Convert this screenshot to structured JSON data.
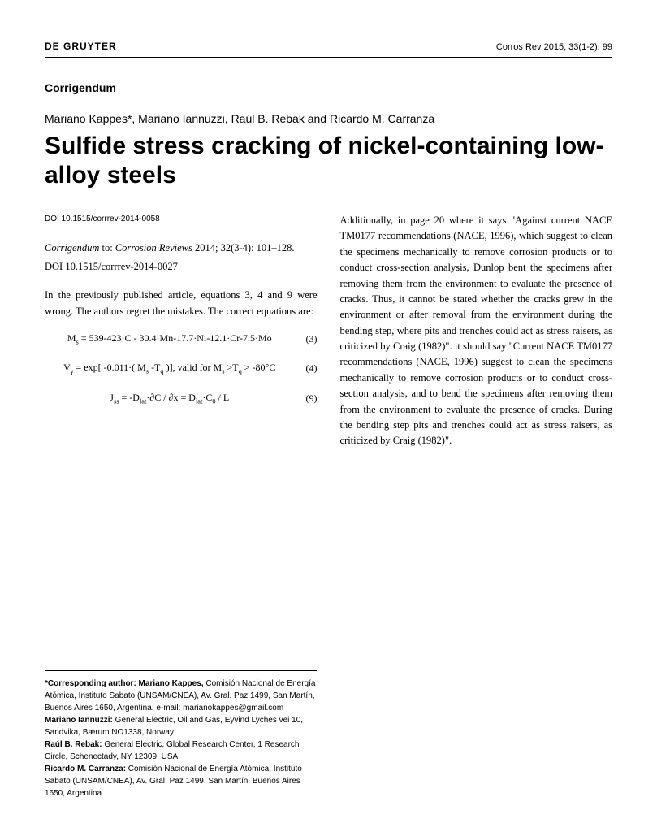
{
  "header": {
    "publisher": "DE GRUYTER",
    "citation": "Corros Rev 2015; 33(1-2): 99"
  },
  "section_label": "Corrigendum",
  "authors": "Mariano Kappes*, Mariano Iannuzzi, Raúl B. Rebak and Ricardo M. Carranza",
  "title": "Sulfide stress cracking of nickel-containing low-alloy steels",
  "doi_small": "DOI 10.1515/corrrev-2014-0058",
  "corrigendum_ref_prefix": "Corrigendum",
  "corrigendum_ref_middle": " to: ",
  "corrigendum_ref_journal": "Corrosion Reviews",
  "corrigendum_ref_suffix": " 2014; 32(3-4): 101–128.",
  "doi_ref": "DOI 10.1515/corrrev-2014-0027",
  "intro": "In the previously published article, equations 3, 4 and 9 were wrong. The authors regret the mistakes. The correct equations are:",
  "equations": [
    {
      "content_html": "M<sub>s</sub> = 539-423·C - 30.4·Mn-17.7·Ni-12.1·Cr-7.5·Mo",
      "num": "(3)"
    },
    {
      "content_html": "V<sub>γ</sub> = exp[ -0.011·( M<sub>s</sub> -T<sub>q</sub> )], valid for M<sub>s</sub> >T<sub>q</sub> > -80°C",
      "num": "(4)"
    },
    {
      "content_html": "J<sub>ss</sub> = -D<sub>lat</sub>·∂C / ∂x = D<sub>lat</sub>·C<sub>0</sub> / L",
      "num": "(9)"
    }
  ],
  "right_col": "Additionally, in page 20 where it says \"Against current NACE TM0177 recommendations (NACE, 1996), which suggest to clean the specimens mechanically to remove corrosion products or to conduct cross-section analysis, Dunlop bent the specimens after removing them from the environment to evaluate the presence of cracks. Thus, it cannot be stated whether the cracks grew in the environment or after removal from the environment during the bending step, where pits and trenches could act as stress raisers, as criticized by Craig (1982)\". it should say \"Current NACE TM0177 recommendations (NACE, 1996) suggest to clean the specimens mechanically to remove corrosion products or to conduct cross-section analysis, and to bend the specimens after removing them from the environment to evaluate the presence of cracks. During the bending step pits and trenches could act as stress raisers, as criticized by Craig (1982)\".",
  "footnotes": [
    {
      "label": "*Corresponding author: Mariano Kappes,",
      "text": " Comisión Nacional de Energía Atómica, Instituto Sabato (UNSAM/CNEA), Av. Gral. Paz 1499, San Martín, Buenos Aires 1650, Argentina, e-mail: marianokappes@gmail.com"
    },
    {
      "label": "Mariano Iannuzzi:",
      "text": " General Electric, Oil and Gas, Eyvind Lyches vei 10, Sandvika, Bærum NO1338, Norway"
    },
    {
      "label": "Raúl B. Rebak:",
      "text": " General Electric, Global Research Center, 1 Research Circle, Schenectady, NY 12309, USA"
    },
    {
      "label": "Ricardo M. Carranza:",
      "text": " Comisión Nacional de Energía Atómica, Instituto Sabato (UNSAM/CNEA), Av. Gral. Paz 1499, San Martín, Buenos Aires 1650, Argentina"
    }
  ]
}
